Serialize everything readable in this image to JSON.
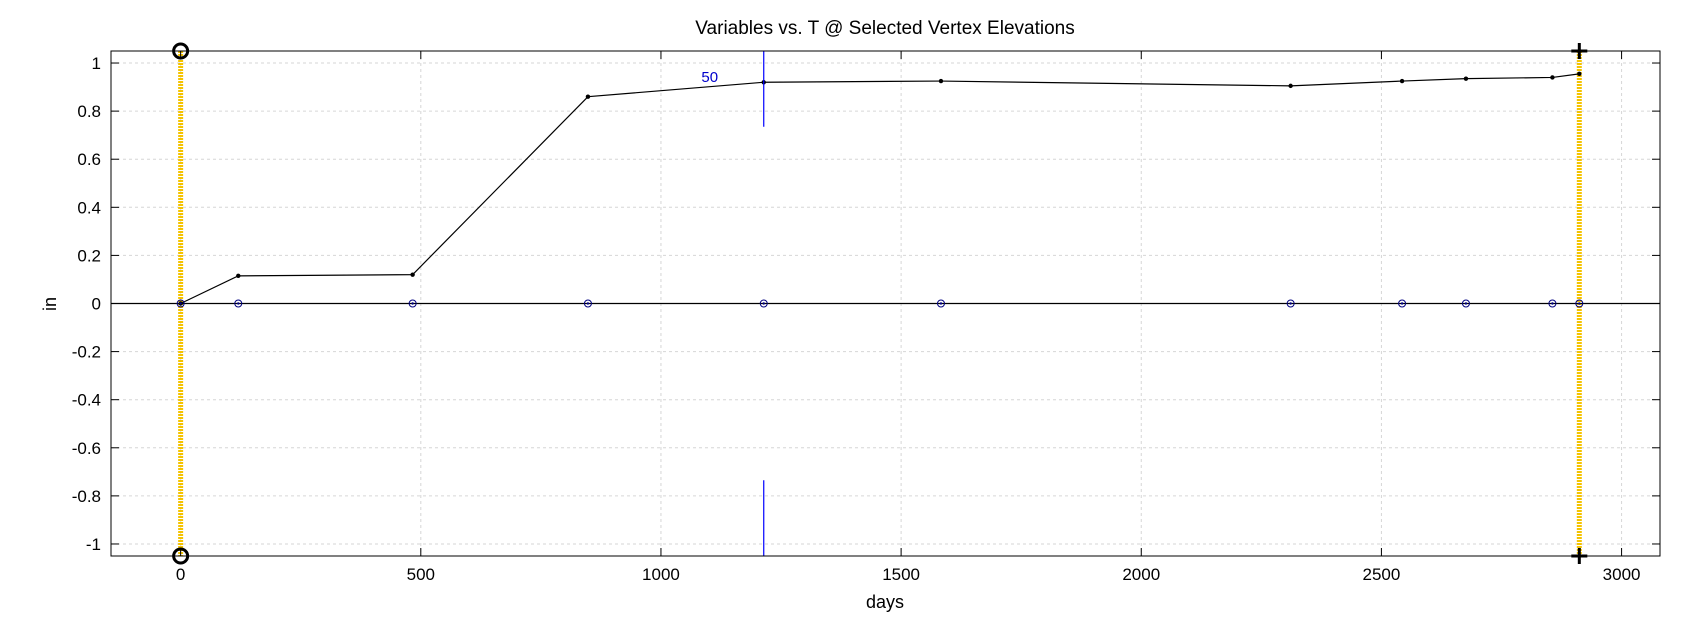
{
  "chart_data": {
    "type": "line",
    "title": "Variables vs. T @ Selected Vertex Elevations",
    "xlabel": "days",
    "ylabel": "in",
    "xlim": [
      -145,
      3080
    ],
    "ylim": [
      -1.05,
      1.05
    ],
    "xticks": [
      0,
      500,
      1000,
      1500,
      2000,
      2500,
      3000
    ],
    "xtick_labels": [
      "0",
      "500",
      "1000",
      "1500",
      "2000",
      "2500",
      "3000"
    ],
    "yticks": [
      1,
      0.8,
      0.6,
      0.4,
      0.2,
      0,
      -0.2,
      -0.4,
      -0.6,
      -0.8,
      -1
    ],
    "ytick_labels": [
      "1",
      "0.8",
      "0.6",
      "0.4",
      "0.2",
      "0",
      "-0.2",
      "-0.4",
      "-0.6",
      "-0.8",
      "-1"
    ],
    "grid": true,
    "series": [
      {
        "color": "#000000",
        "marker": "dot",
        "x": [
          0,
          120,
          483,
          848,
          1214,
          1583,
          2311,
          2543,
          2676,
          2856,
          2912
        ],
        "y": [
          0,
          0.115,
          0.12,
          0.86,
          0.92,
          0.925,
          0.905,
          0.925,
          0.935,
          0.94,
          0.955
        ]
      },
      {
        "color": "#000080",
        "marker": "circle",
        "x": [
          0,
          120,
          483,
          848,
          1214,
          1583,
          2311,
          2543,
          2676,
          2856,
          2912
        ],
        "y": [
          0,
          0,
          0,
          0,
          0,
          0,
          0,
          0,
          0,
          0,
          0
        ]
      }
    ],
    "zero_line": true,
    "vertical_bands": [
      {
        "x": 0,
        "color": "#f5c400",
        "end_marker": "circle"
      },
      {
        "x": 2912,
        "color": "#f5c400",
        "end_marker": "plus"
      }
    ],
    "annotation": {
      "text": "50",
      "x": 1214,
      "color": "#0000ff",
      "tick_upper": [
        0.735,
        1.05
      ],
      "tick_lower": [
        -1.05,
        -0.735
      ]
    }
  }
}
